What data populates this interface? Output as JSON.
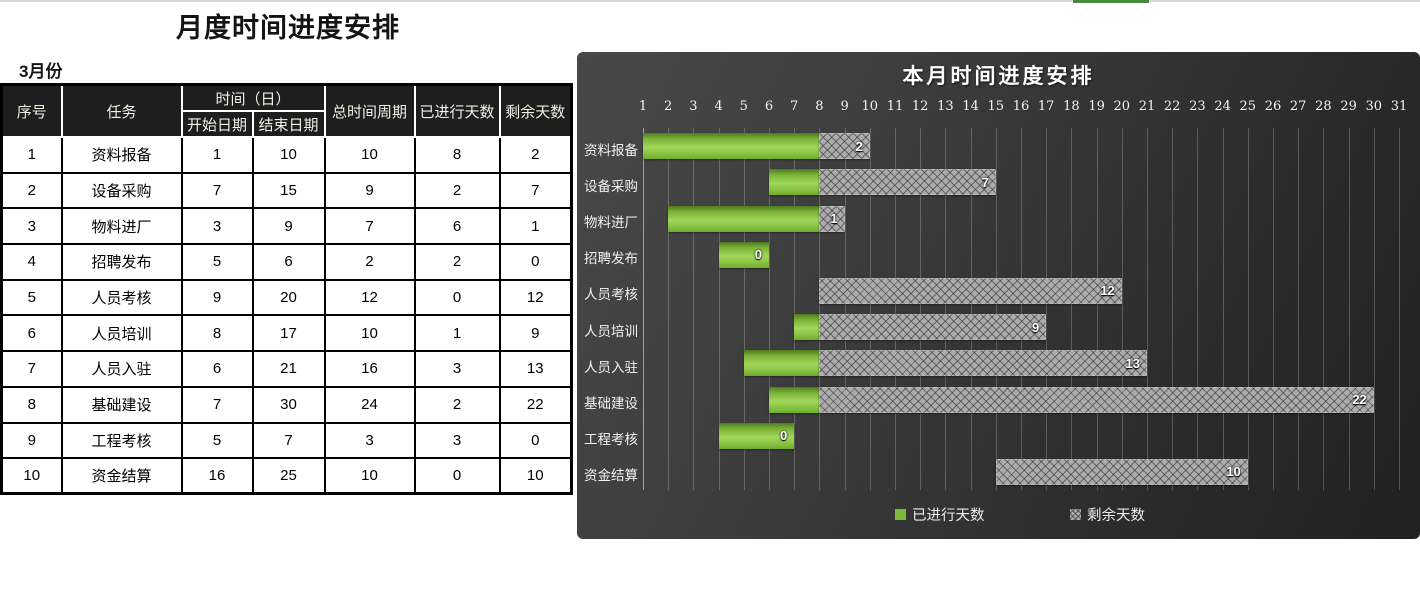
{
  "window": {
    "top_strip_color": "#d9d9d9",
    "top_tab_color": "#4a8741"
  },
  "page": {
    "title": "月度时间进度安排",
    "month_label": "3月份"
  },
  "table": {
    "headers": {
      "seq": "序号",
      "task": "任务",
      "time_group": "时间（日）",
      "start_date": "开始日期",
      "end_date": "结束日期",
      "total_period": "总时间周期",
      "elapsed_days": "已进行天数",
      "remaining_days": "剩余天数"
    },
    "rows": [
      {
        "seq": "1",
        "task": "资料报备",
        "start": "1",
        "end": "10",
        "total": "10",
        "elapsed": "8",
        "remaining": "2"
      },
      {
        "seq": "2",
        "task": "设备采购",
        "start": "7",
        "end": "15",
        "total": "9",
        "elapsed": "2",
        "remaining": "7"
      },
      {
        "seq": "3",
        "task": "物料进厂",
        "start": "3",
        "end": "9",
        "total": "7",
        "elapsed": "6",
        "remaining": "1"
      },
      {
        "seq": "4",
        "task": "招聘发布",
        "start": "5",
        "end": "6",
        "total": "2",
        "elapsed": "2",
        "remaining": "0"
      },
      {
        "seq": "5",
        "task": "人员考核",
        "start": "9",
        "end": "20",
        "total": "12",
        "elapsed": "0",
        "remaining": "12"
      },
      {
        "seq": "6",
        "task": "人员培训",
        "start": "8",
        "end": "17",
        "total": "10",
        "elapsed": "1",
        "remaining": "9"
      },
      {
        "seq": "7",
        "task": "人员入驻",
        "start": "6",
        "end": "21",
        "total": "16",
        "elapsed": "3",
        "remaining": "13"
      },
      {
        "seq": "8",
        "task": "基础建设",
        "start": "7",
        "end": "30",
        "total": "24",
        "elapsed": "2",
        "remaining": "22"
      },
      {
        "seq": "9",
        "task": "工程考核",
        "start": "5",
        "end": "7",
        "total": "3",
        "elapsed": "3",
        "remaining": "0"
      },
      {
        "seq": "10",
        "task": "资金结算",
        "start": "16",
        "end": "25",
        "total": "10",
        "elapsed": "0",
        "remaining": "10"
      }
    ]
  },
  "chart_data": {
    "type": "bar",
    "subtype": "horizontal-stacked-gantt",
    "title": "本月时间进度安排",
    "categories": [
      "资料报备",
      "设备采购",
      "物料进厂",
      "招聘发布",
      "人员考核",
      "人员培训",
      "人员入驻",
      "基础建设",
      "工程考核",
      "资金结算"
    ],
    "bar_start_day": [
      1,
      7,
      3,
      5,
      9,
      8,
      6,
      7,
      5,
      16
    ],
    "series": [
      {
        "name": "已进行天数",
        "color": "#8CC63F",
        "values": [
          8,
          2,
          6,
          2,
          0,
          1,
          3,
          2,
          3,
          0
        ]
      },
      {
        "name": "剩余天数",
        "color": "#ABABAB",
        "pattern": "diamond-hatch",
        "values": [
          2,
          7,
          1,
          0,
          12,
          9,
          13,
          22,
          0,
          10
        ]
      }
    ],
    "data_labels": {
      "series": "剩余天数",
      "position": "inside-end",
      "values": [
        2,
        7,
        1,
        0,
        12,
        9,
        13,
        22,
        0,
        10
      ]
    },
    "x_axis": {
      "min": 1,
      "max": 31,
      "tick_step": 1,
      "grid": true,
      "label_side": "top"
    },
    "legend": {
      "position": "bottom",
      "entries": [
        "已进行天数",
        "剩余天数"
      ]
    },
    "background": "dark-gradient",
    "text_color": "#ffffff"
  }
}
